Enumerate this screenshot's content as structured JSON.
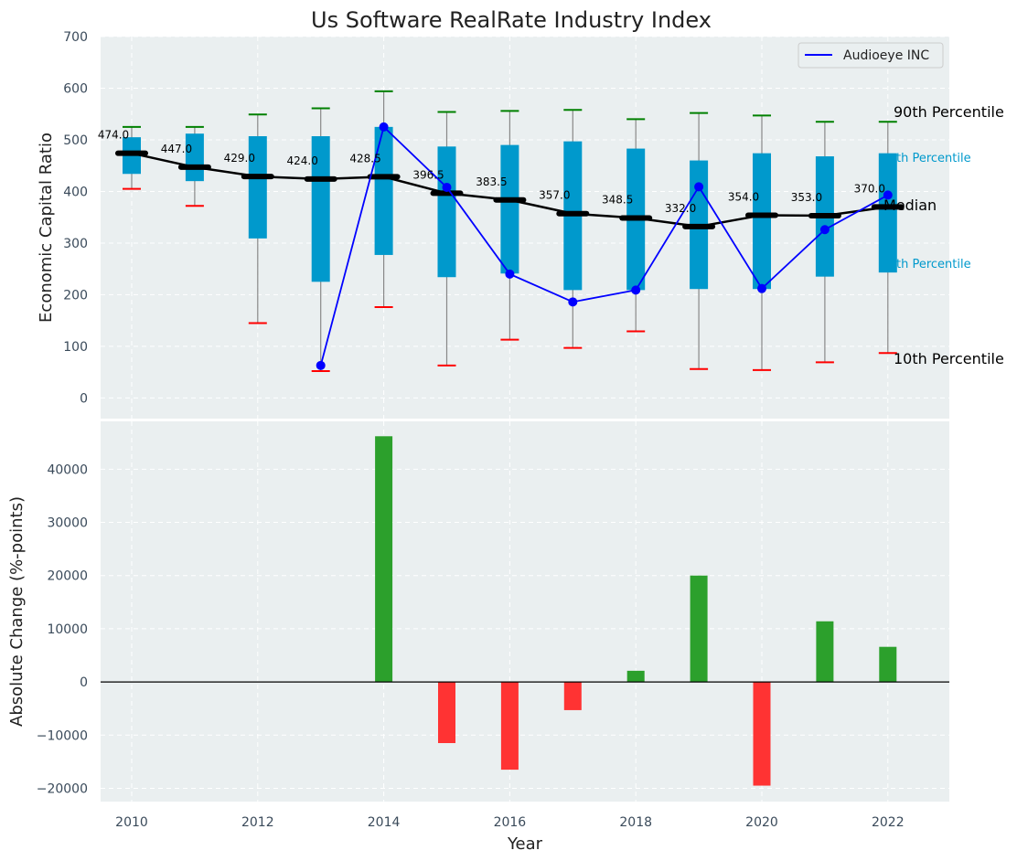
{
  "chart_data": [
    {
      "type": "box",
      "title": "Us Software RealRate Industry Index",
      "xlabel": "",
      "ylabel": "Economic Capital Ratio",
      "ylim": [
        -40,
        700
      ],
      "yticks": [
        0,
        100,
        200,
        300,
        400,
        500,
        600,
        700
      ],
      "grid": true,
      "legend_position": "top-right",
      "colors": {
        "box": "#0099cc",
        "median_line": "#000000",
        "company": "#0000ff",
        "p90_whisker": "#008000",
        "p10_whisker": "#ff0000",
        "whisker": "#888888"
      },
      "x": [
        2010,
        2011,
        2012,
        2013,
        2014,
        2015,
        2016,
        2017,
        2018,
        2019,
        2020,
        2021,
        2022
      ],
      "median": [
        474.0,
        447.0,
        429.0,
        424.0,
        428.5,
        396.5,
        383.5,
        357.0,
        348.5,
        332.0,
        354.0,
        353.0,
        370.0
      ],
      "median_labels": [
        "474.0",
        "447.0",
        "429.0",
        "424.0",
        "428.5",
        "396.5",
        "383.5",
        "357.0",
        "348.5",
        "332.0",
        "354.0",
        "353.0",
        "370.0"
      ],
      "p75": [
        505,
        512,
        507,
        507,
        525,
        487,
        490,
        497,
        483,
        460,
        474,
        468,
        474
      ],
      "p25": [
        434,
        420,
        309,
        225,
        277,
        234,
        241,
        209,
        209,
        211,
        211,
        235,
        243
      ],
      "p90": [
        525,
        525,
        549,
        561,
        594,
        554,
        556,
        558,
        540,
        552,
        547,
        535,
        535
      ],
      "p10": [
        405,
        372,
        145,
        52,
        176,
        63,
        113,
        97,
        129,
        56,
        54,
        69,
        87
      ],
      "series": [
        {
          "name": "Audioeye INC",
          "values": [
            null,
            null,
            null,
            63,
            525,
            408,
            240,
            186,
            209,
            409,
            212,
            326,
            393
          ]
        }
      ],
      "percentile_labels": {
        "p90": "90th Percentile",
        "p75": "th Percentile",
        "median": "Median",
        "p25": "th Percentile",
        "p10": "10th Percentile"
      }
    },
    {
      "type": "bar",
      "title": "",
      "xlabel": "Year",
      "ylabel": "Absolute Change (%-points)",
      "ylim": [
        -22500,
        49000
      ],
      "yticks": [
        -20000,
        -10000,
        0,
        10000,
        20000,
        30000,
        40000
      ],
      "ytick_labels": [
        "−20000",
        "−10000",
        "0",
        "10000",
        "20000",
        "30000",
        "40000"
      ],
      "xticks": [
        2010,
        2012,
        2014,
        2016,
        2018,
        2020,
        2022
      ],
      "grid": true,
      "colors": {
        "positive": "#2ca02c",
        "negative": "#ff3333"
      },
      "x": [
        2014,
        2015,
        2016,
        2017,
        2018,
        2019,
        2020,
        2021,
        2022
      ],
      "values": [
        46200,
        -11500,
        -16500,
        -5300,
        2100,
        20000,
        -19500,
        11400,
        6600
      ]
    }
  ]
}
